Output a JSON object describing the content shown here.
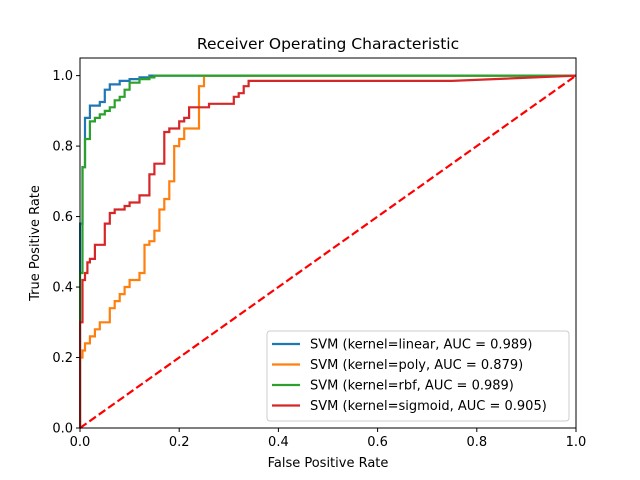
{
  "chart_data": {
    "type": "line",
    "title": "Receiver Operating Characteristic",
    "xlabel": "False Positive Rate",
    "ylabel": "True Positive Rate",
    "xlim": [
      0,
      1
    ],
    "ylim": [
      0,
      1.05
    ],
    "x_ticks": [
      "0.0",
      "0.2",
      "0.4",
      "0.6",
      "0.8",
      "1.0"
    ],
    "y_ticks": [
      "0.0",
      "0.2",
      "0.4",
      "0.6",
      "0.8",
      "1.0"
    ],
    "grid": false,
    "legend_position": "lower-right",
    "series": [
      {
        "name": "SVM (kernel=linear, AUC = 0.989)",
        "color": "#1f77b4",
        "x": [
          0,
          0,
          0.005,
          0.005,
          0.01,
          0.01,
          0.02,
          0.02,
          0.04,
          0.04,
          0.05,
          0.05,
          0.06,
          0.06,
          0.08,
          0.08,
          0.1,
          0.1,
          0.12,
          0.12,
          0.14,
          0.14,
          1.0
        ],
        "y": [
          0,
          0.58,
          0.58,
          0.74,
          0.74,
          0.88,
          0.88,
          0.915,
          0.915,
          0.925,
          0.925,
          0.96,
          0.96,
          0.975,
          0.975,
          0.985,
          0.985,
          0.99,
          0.99,
          0.995,
          0.995,
          1.0,
          1.0
        ]
      },
      {
        "name": "SVM (kernel=poly, AUC = 0.879)",
        "color": "#ff7f0e",
        "x": [
          0,
          0,
          0.005,
          0.005,
          0.01,
          0.01,
          0.02,
          0.02,
          0.03,
          0.03,
          0.04,
          0.04,
          0.06,
          0.06,
          0.07,
          0.07,
          0.08,
          0.08,
          0.09,
          0.09,
          0.1,
          0.1,
          0.12,
          0.12,
          0.13,
          0.13,
          0.14,
          0.14,
          0.15,
          0.15,
          0.16,
          0.16,
          0.17,
          0.17,
          0.18,
          0.18,
          0.19,
          0.19,
          0.2,
          0.2,
          0.21,
          0.21,
          0.24,
          0.24,
          0.25,
          0.25,
          1.0
        ],
        "y": [
          0,
          0.2,
          0.2,
          0.22,
          0.22,
          0.24,
          0.24,
          0.26,
          0.26,
          0.28,
          0.28,
          0.3,
          0.3,
          0.34,
          0.34,
          0.36,
          0.36,
          0.38,
          0.38,
          0.4,
          0.4,
          0.42,
          0.42,
          0.44,
          0.44,
          0.52,
          0.52,
          0.53,
          0.53,
          0.56,
          0.56,
          0.62,
          0.62,
          0.65,
          0.65,
          0.7,
          0.7,
          0.8,
          0.8,
          0.82,
          0.82,
          0.85,
          0.85,
          0.97,
          0.97,
          1.0,
          1.0
        ]
      },
      {
        "name": "SVM (kernel=rbf, AUC = 0.989)",
        "color": "#2ca02c",
        "x": [
          0,
          0,
          0.005,
          0.005,
          0.01,
          0.01,
          0.02,
          0.02,
          0.03,
          0.03,
          0.04,
          0.04,
          0.05,
          0.05,
          0.06,
          0.06,
          0.07,
          0.07,
          0.08,
          0.08,
          0.09,
          0.09,
          0.1,
          0.1,
          0.12,
          0.12,
          0.14,
          0.14,
          0.15,
          0.15,
          1.0
        ],
        "y": [
          0,
          0.44,
          0.44,
          0.74,
          0.74,
          0.82,
          0.82,
          0.87,
          0.87,
          0.88,
          0.88,
          0.89,
          0.89,
          0.9,
          0.9,
          0.91,
          0.91,
          0.93,
          0.93,
          0.94,
          0.94,
          0.96,
          0.96,
          0.98,
          0.98,
          0.99,
          0.99,
          0.995,
          0.995,
          1.0,
          1.0
        ]
      },
      {
        "name": "SVM (kernel=sigmoid, AUC = 0.905)",
        "color": "#d62728",
        "x": [
          0,
          0,
          0.005,
          0.005,
          0.01,
          0.01,
          0.015,
          0.015,
          0.02,
          0.02,
          0.03,
          0.03,
          0.05,
          0.05,
          0.06,
          0.06,
          0.07,
          0.07,
          0.09,
          0.09,
          0.1,
          0.1,
          0.12,
          0.12,
          0.14,
          0.14,
          0.15,
          0.15,
          0.17,
          0.17,
          0.18,
          0.18,
          0.2,
          0.2,
          0.21,
          0.21,
          0.22,
          0.22,
          0.26,
          0.26,
          0.31,
          0.31,
          0.32,
          0.32,
          0.33,
          0.33,
          0.34,
          0.34,
          0.75,
          1.0
        ],
        "y": [
          0,
          0.3,
          0.3,
          0.42,
          0.42,
          0.44,
          0.44,
          0.47,
          0.47,
          0.48,
          0.48,
          0.52,
          0.52,
          0.58,
          0.58,
          0.61,
          0.61,
          0.62,
          0.62,
          0.63,
          0.63,
          0.64,
          0.64,
          0.66,
          0.66,
          0.72,
          0.72,
          0.75,
          0.75,
          0.84,
          0.84,
          0.85,
          0.85,
          0.87,
          0.87,
          0.88,
          0.88,
          0.91,
          0.91,
          0.92,
          0.92,
          0.94,
          0.94,
          0.95,
          0.95,
          0.97,
          0.97,
          0.985,
          0.985,
          1.0
        ]
      },
      {
        "name": "",
        "color": "#ff0000",
        "dashed": true,
        "x": [
          0,
          1
        ],
        "y": [
          0,
          1
        ]
      }
    ],
    "legend_entries": [
      "SVM (kernel=linear, AUC = 0.989)",
      "SVM (kernel=poly, AUC = 0.879)",
      "SVM (kernel=rbf, AUC = 0.989)",
      "SVM (kernel=sigmoid, AUC = 0.905)"
    ]
  }
}
